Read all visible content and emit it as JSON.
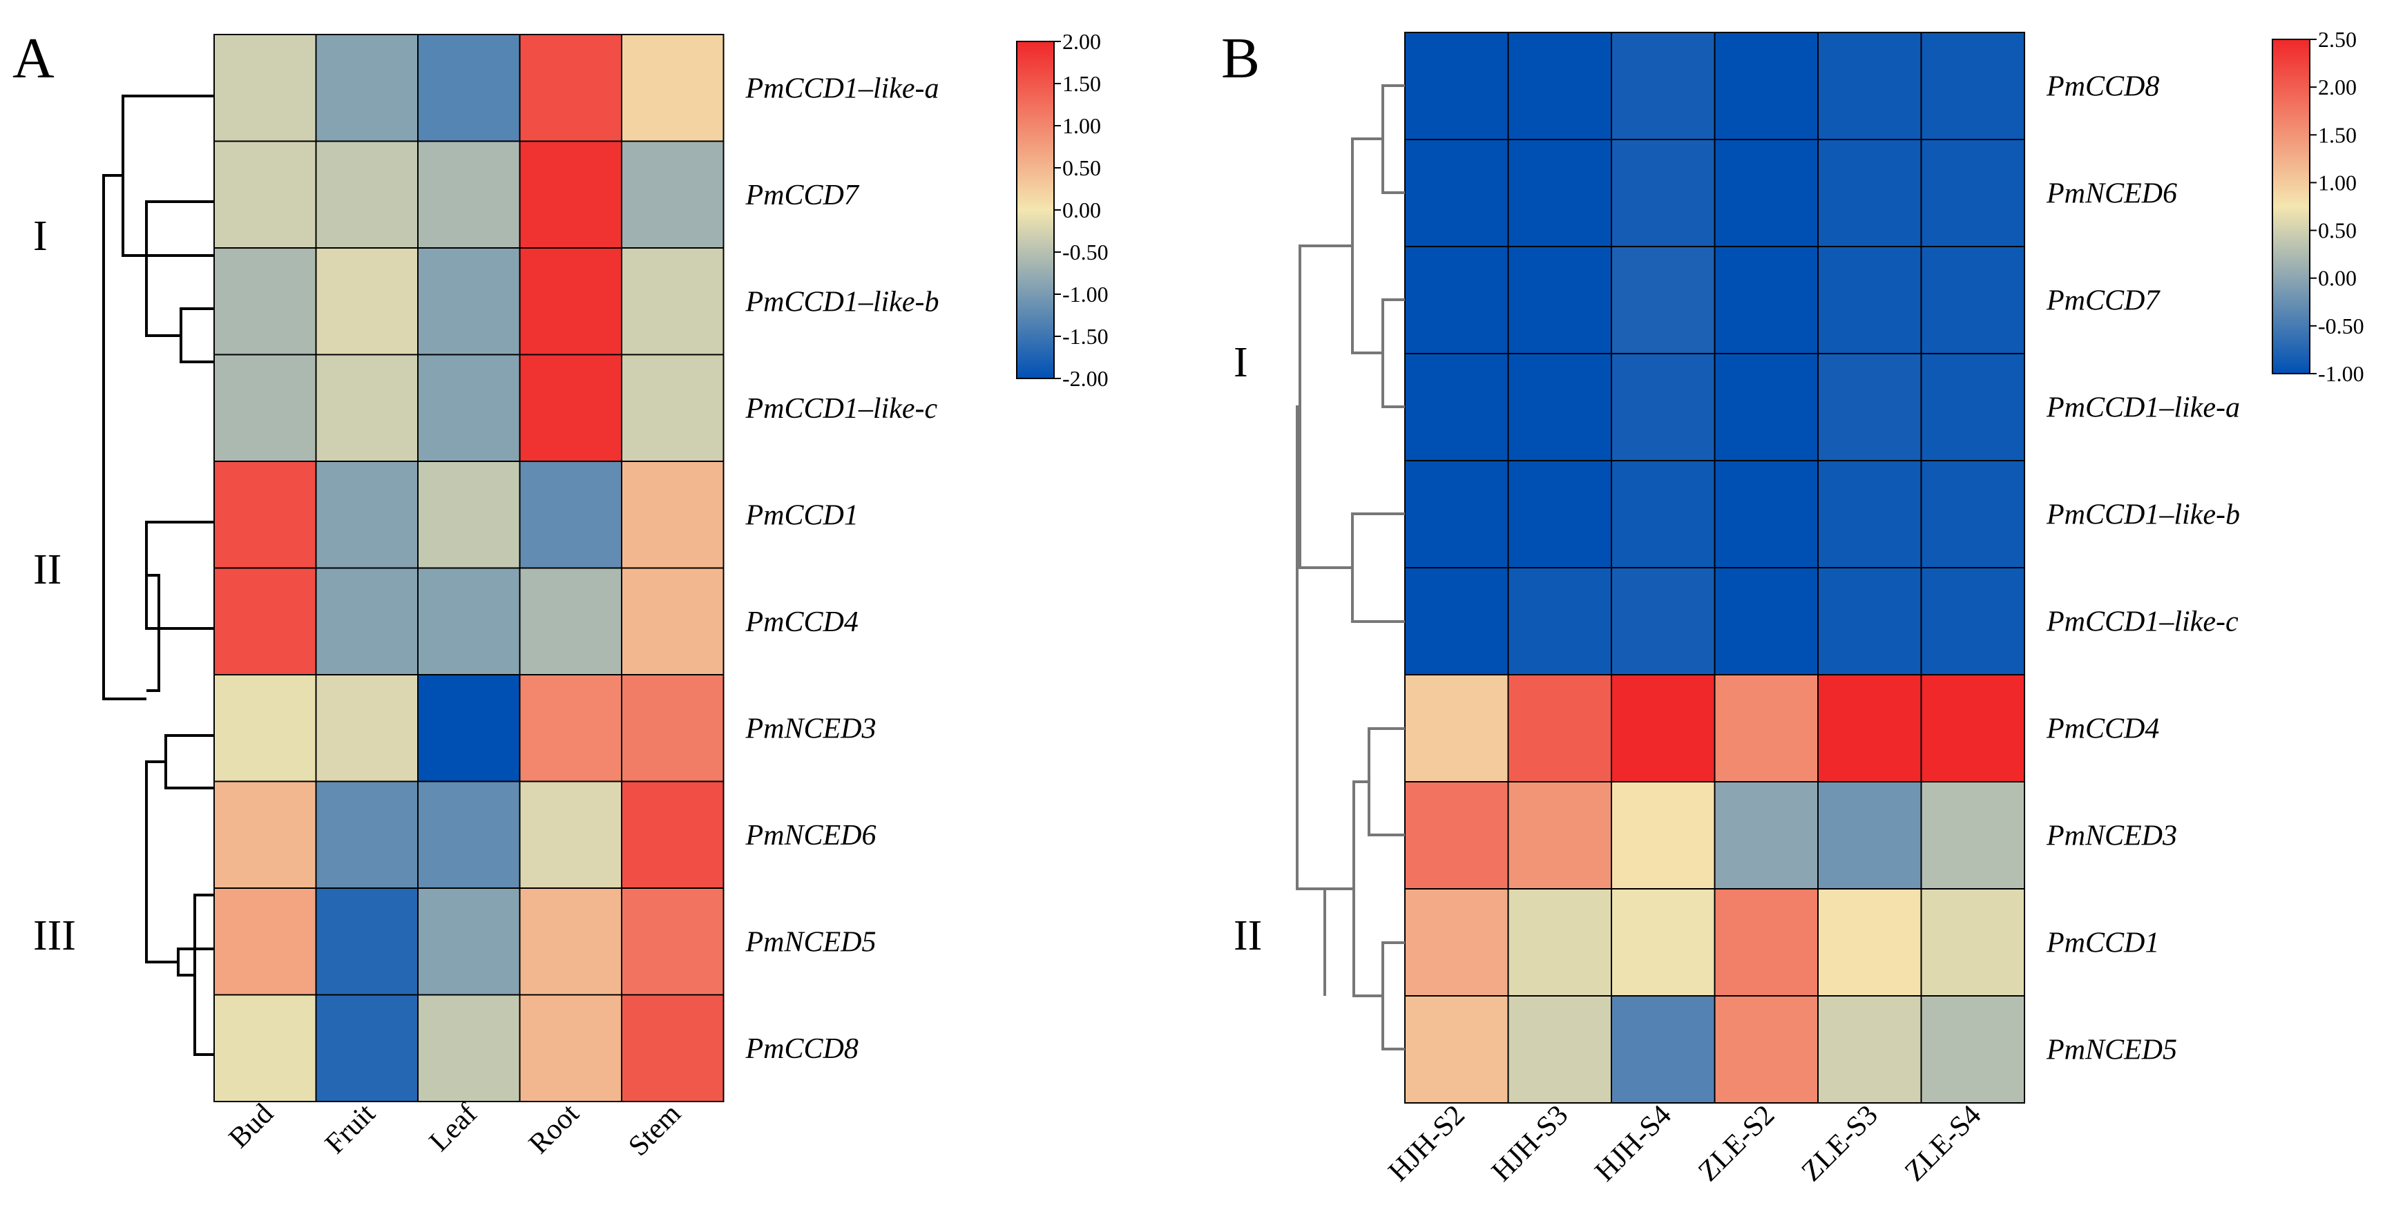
{
  "chart_data": [
    {
      "type": "heatmap",
      "panel_label": "A",
      "columns": [
        "Bud",
        "Fruit",
        "Leaf",
        "Root",
        "Stem"
      ],
      "rows": [
        "PmCCD1–like-a",
        "PmCCD7",
        "PmCCD1–like-b",
        "PmCCD1–like-c",
        "PmCCD1",
        "PmCCD4",
        "PmNCED3",
        "PmNCED6",
        "PmNCED5",
        "PmCCD8"
      ],
      "values": [
        [
          -0.3,
          -0.9,
          -1.3,
          1.6,
          0.2
        ],
        [
          -0.3,
          -0.4,
          -0.6,
          1.9,
          -0.7
        ],
        [
          -0.6,
          -0.2,
          -0.9,
          1.9,
          -0.3
        ],
        [
          -0.6,
          -0.3,
          -0.9,
          1.9,
          -0.3
        ],
        [
          1.6,
          -0.9,
          -0.4,
          -1.2,
          0.5
        ],
        [
          1.6,
          -0.9,
          -0.9,
          -0.6,
          0.5
        ],
        [
          -0.1,
          -0.2,
          -2.0,
          1.0,
          1.1
        ],
        [
          0.5,
          -1.2,
          -1.2,
          -0.2,
          1.6
        ],
        [
          0.7,
          -1.7,
          -0.9,
          0.5,
          1.2
        ],
        [
          -0.1,
          -1.7,
          -0.4,
          0.5,
          1.5
        ]
      ],
      "color_scale": {
        "min": -2.0,
        "max": 2.0,
        "ticks": [
          "2.00",
          "1.50",
          "1.00",
          "0.50",
          "0.00",
          "-0.50",
          "-1.00",
          "-1.50",
          "-2.00"
        ],
        "low_color": "#0050b4",
        "mid_color": "#f4e6b0",
        "high_color": "#f0282a"
      },
      "clusters": [
        "I",
        "II",
        "III"
      ]
    },
    {
      "type": "heatmap",
      "panel_label": "B",
      "columns": [
        "HJH-S2",
        "HJH-S3",
        "HJH-S4",
        "ZLE-S2",
        "ZLE-S3",
        "ZLE-S4"
      ],
      "rows": [
        "PmCCD8",
        "PmNCED6",
        "PmCCD7",
        "PmCCD1–like-a",
        "PmCCD1–like-b",
        "PmCCD1–like-c",
        "PmCCD4",
        "PmNCED3",
        "PmCCD1",
        "PmNCED5"
      ],
      "values": [
        [
          -1.0,
          -1.0,
          -0.85,
          -1.0,
          -0.9,
          -0.9
        ],
        [
          -1.0,
          -1.0,
          -0.85,
          -1.0,
          -0.9,
          -0.9
        ],
        [
          -1.0,
          -1.0,
          -0.8,
          -1.0,
          -0.9,
          -0.9
        ],
        [
          -1.0,
          -1.0,
          -0.85,
          -1.0,
          -0.85,
          -0.9
        ],
        [
          -1.0,
          -1.0,
          -0.9,
          -1.0,
          -0.9,
          -0.9
        ],
        [
          -1.0,
          -0.9,
          -0.85,
          -1.0,
          -0.9,
          -0.9
        ],
        [
          1.0,
          2.0,
          2.5,
          1.6,
          2.5,
          2.5
        ],
        [
          1.8,
          1.5,
          0.8,
          0.0,
          -0.2,
          0.3
        ],
        [
          1.3,
          0.6,
          0.7,
          1.7,
          0.8,
          0.6
        ],
        [
          1.1,
          0.5,
          -0.4,
          1.6,
          0.5,
          0.3
        ]
      ],
      "color_scale": {
        "min": -1.0,
        "max": 2.5,
        "ticks": [
          "2.50",
          "2.00",
          "1.50",
          "1.00",
          "0.50",
          "0.00",
          "-0.50",
          "-1.00"
        ],
        "low_color": "#0050b4",
        "mid_color": "#f4e6b0",
        "high_color": "#f0282a"
      },
      "clusters": [
        "I",
        "II"
      ]
    }
  ]
}
